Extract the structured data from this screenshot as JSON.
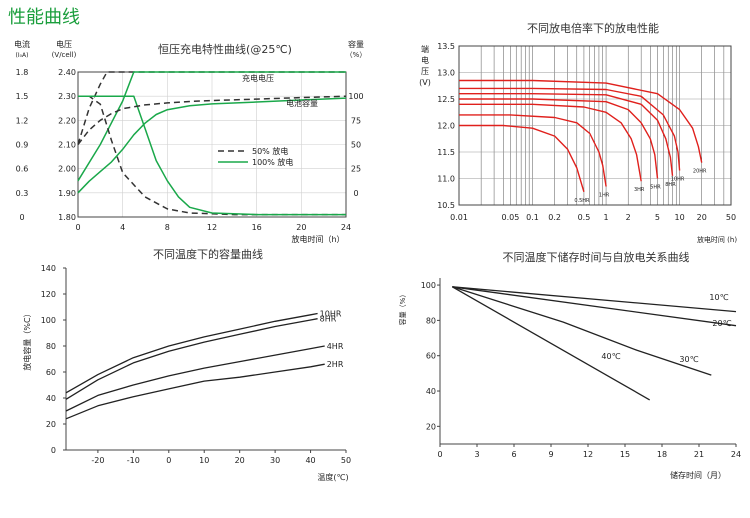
{
  "page_title": "性能曲线",
  "chart_data": [
    {
      "type": "line",
      "title": "恒压充电特性曲线(@25℃)",
      "xlabel": "放电时间（h）",
      "x_ticks": [
        0,
        4,
        8,
        12,
        16,
        20,
        24
      ],
      "xlim": [
        0,
        24
      ],
      "axis_current": {
        "label_line1": "电流",
        "label_line2": "(I₀A)",
        "ticks": [
          "0",
          "0.3",
          "0.6",
          "0.9",
          "1.2",
          "1.5",
          "1.8"
        ],
        "lim": [
          0,
          1.8
        ]
      },
      "axis_voltage": {
        "label_line1": "电压",
        "label_line2": "(V/cell)",
        "ticks": [
          "1.80",
          "1.90",
          "2.00",
          "2.10",
          "2.20",
          "2.30",
          "2.40"
        ],
        "lim": [
          1.8,
          2.4
        ]
      },
      "axis_capacity": {
        "label_line1": "容量",
        "label_line2": "（%）",
        "ticks": [
          "0",
          "25",
          "50",
          "75",
          "100"
        ],
        "lim": [
          -25,
          125
        ]
      },
      "legend": [
        {
          "name": "50% 放电",
          "style": "dashed"
        },
        {
          "name": "100% 放电",
          "style": "solid"
        }
      ],
      "annotations": [
        "充电电压",
        "电池容量"
      ],
      "series": [
        {
          "name": "50% 放电",
          "kind": "voltage",
          "x": [
            0,
            1,
            2,
            2.6,
            24
          ],
          "y": [
            2.1,
            2.25,
            2.35,
            2.4,
            2.4
          ]
        },
        {
          "name": "100% 放电",
          "kind": "voltage",
          "x": [
            0,
            2,
            4,
            5,
            24
          ],
          "y": [
            1.95,
            2.1,
            2.28,
            2.4,
            2.4
          ]
        },
        {
          "name": "50% 放电",
          "kind": "current",
          "x": [
            0,
            1,
            2,
            3,
            4,
            6,
            8,
            10,
            14,
            24
          ],
          "y": [
            1.5,
            1.5,
            1.4,
            0.95,
            0.55,
            0.25,
            0.1,
            0.05,
            0.03,
            0.03
          ]
        },
        {
          "name": "100% 放电",
          "kind": "current",
          "x": [
            0,
            5,
            6,
            7,
            8,
            9,
            10,
            12,
            16,
            24
          ],
          "y": [
            1.5,
            1.5,
            1.1,
            0.7,
            0.45,
            0.25,
            0.12,
            0.05,
            0.03,
            0.03
          ]
        },
        {
          "name": "50% 放电",
          "kind": "capacity",
          "x": [
            0,
            1,
            2,
            3,
            4,
            5,
            6,
            8,
            10,
            12,
            16,
            20,
            24
          ],
          "y": [
            50,
            65,
            75,
            82,
            87,
            89,
            91,
            93,
            94.5,
            95.5,
            97,
            98.5,
            100
          ]
        },
        {
          "name": "100% 放电",
          "kind": "capacity",
          "x": [
            0,
            1,
            2,
            3,
            4,
            5,
            6,
            7,
            8,
            10,
            12,
            16,
            20,
            24
          ],
          "y": [
            0,
            12,
            22,
            32,
            45,
            60,
            72,
            81,
            86,
            90,
            92,
            94,
            96,
            98
          ]
        }
      ]
    },
    {
      "type": "line",
      "title": "不同放电倍率下的放电性能",
      "ylabel_chars": [
        "端",
        "电",
        "压",
        "(V)"
      ],
      "xlabel": "放电时间 (h)",
      "x_scale": "log",
      "x_ticks": [
        "0.01",
        "0.05",
        "0.1",
        "0.2",
        "0.5",
        "1",
        "2",
        "5",
        "10",
        "20",
        "50"
      ],
      "y_ticks": [
        "10.5",
        "11.0",
        "11.5",
        "12.0",
        "12.5",
        "13.0",
        "13.5"
      ],
      "ylim": [
        10.5,
        13.5
      ],
      "color": "#e0201c",
      "series": [
        {
          "name": "0.5HR",
          "x": [
            0.01,
            0.04,
            0.1,
            0.2,
            0.3,
            0.4,
            0.5
          ],
          "y": [
            12.0,
            12.0,
            11.95,
            11.8,
            11.55,
            11.2,
            10.75
          ]
        },
        {
          "name": "1HR",
          "x": [
            0.01,
            0.05,
            0.2,
            0.4,
            0.6,
            0.8,
            0.9,
            1.0
          ],
          "y": [
            12.2,
            12.2,
            12.15,
            12.05,
            11.85,
            11.5,
            11.25,
            10.85
          ]
        },
        {
          "name": "3HR",
          "x": [
            0.01,
            0.1,
            0.5,
            1.0,
            1.6,
            2.2,
            2.6,
            3.0
          ],
          "y": [
            12.4,
            12.4,
            12.35,
            12.25,
            12.05,
            11.75,
            11.45,
            10.95
          ]
        },
        {
          "name": "5HR",
          "x": [
            0.01,
            0.1,
            1.0,
            2.0,
            3.0,
            4.0,
            4.6,
            5.0
          ],
          "y": [
            12.5,
            12.5,
            12.45,
            12.3,
            12.05,
            11.75,
            11.45,
            11.0
          ]
        },
        {
          "name": "8HR",
          "x": [
            0.01,
            0.1,
            1.0,
            3.0,
            5.0,
            6.5,
            7.5,
            8.0
          ],
          "y": [
            12.6,
            12.6,
            12.58,
            12.4,
            12.1,
            11.75,
            11.4,
            11.05
          ]
        },
        {
          "name": "10HR",
          "x": [
            0.01,
            0.1,
            1.0,
            3.0,
            6.0,
            8.5,
            9.5,
            10.0
          ],
          "y": [
            12.7,
            12.7,
            12.68,
            12.55,
            12.2,
            11.8,
            11.5,
            11.15
          ]
        },
        {
          "name": "20HR",
          "x": [
            0.01,
            0.1,
            1.0,
            5.0,
            10.0,
            15.0,
            18.0,
            20.0
          ],
          "y": [
            12.85,
            12.85,
            12.8,
            12.6,
            12.3,
            11.95,
            11.6,
            11.3
          ]
        }
      ]
    },
    {
      "type": "line",
      "title": "不同温度下的容量曲线",
      "ylabel": "放电容量（%C）",
      "xlabel": "温度(℃)",
      "x_ticks": [
        "-20",
        "-10",
        "0",
        "10",
        "20",
        "30",
        "40",
        "50"
      ],
      "y_ticks": [
        "0",
        "20",
        "40",
        "60",
        "80",
        "100",
        "120",
        "140"
      ],
      "xlim": [
        -29,
        50
      ],
      "ylim": [
        0,
        140
      ],
      "series": [
        {
          "name": "10HR",
          "x": [
            -29,
            -20,
            -10,
            0,
            10,
            20,
            30,
            40,
            42
          ],
          "y": [
            44,
            58,
            71,
            80,
            87,
            93,
            99,
            104,
            105
          ]
        },
        {
          "name": "8HR",
          "x": [
            -29,
            -20,
            -10,
            0,
            10,
            20,
            30,
            40,
            42
          ],
          "y": [
            39,
            54,
            67,
            76,
            83,
            89,
            95,
            100,
            101
          ]
        },
        {
          "name": "4HR",
          "x": [
            -29,
            -20,
            -10,
            0,
            10,
            20,
            30,
            40,
            44
          ],
          "y": [
            30,
            42,
            50,
            57,
            63,
            68,
            73,
            78,
            80
          ]
        },
        {
          "name": "2HR",
          "x": [
            -29,
            -20,
            -10,
            0,
            10,
            20,
            30,
            40,
            44
          ],
          "y": [
            24,
            34,
            41,
            47,
            53,
            56,
            60,
            64,
            66
          ]
        }
      ]
    },
    {
      "type": "line",
      "title": "不同温度下储存时间与自放电关系曲线",
      "ylabel": "容量（%）",
      "xlabel": "储存时间（月）",
      "x_ticks": [
        "0",
        "3",
        "6",
        "9",
        "12",
        "15",
        "18",
        "21",
        "24"
      ],
      "y_ticks": [
        "20",
        "40",
        "60",
        "80",
        "100"
      ],
      "xlim": [
        0,
        24
      ],
      "ylim": [
        10,
        104
      ],
      "series": [
        {
          "name": "10℃",
          "x": [
            1,
            24
          ],
          "y": [
            99,
            85
          ]
        },
        {
          "name": "20℃",
          "x": [
            1,
            24
          ],
          "y": [
            99,
            77
          ]
        },
        {
          "name": "30℃",
          "x": [
            1,
            10,
            16,
            22
          ],
          "y": [
            99,
            79,
            63,
            49
          ]
        },
        {
          "name": "40℃",
          "x": [
            1,
            17
          ],
          "y": [
            99,
            35
          ]
        }
      ]
    }
  ]
}
